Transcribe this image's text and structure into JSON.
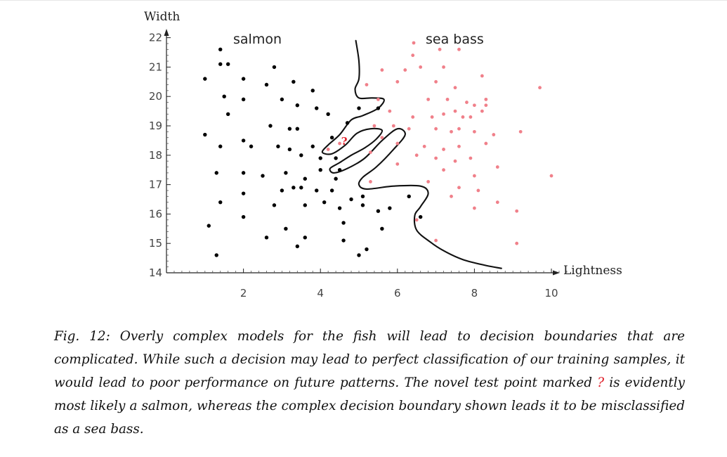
{
  "chart_data": {
    "type": "scatter",
    "ylabel": "Width",
    "xlabel": "Lightness",
    "xlim": [
      0,
      10.6
    ],
    "ylim": [
      14,
      22
    ],
    "x_ticks": [
      2,
      4,
      6,
      8,
      10
    ],
    "y_ticks": [
      14,
      15,
      16,
      17,
      18,
      19,
      20,
      21,
      22
    ],
    "series": [
      {
        "name": "salmon",
        "color": "#000000",
        "points": [
          [
            1.4,
            21.6
          ],
          [
            1.4,
            21.1
          ],
          [
            1.6,
            21.1
          ],
          [
            2.0,
            20.6
          ],
          [
            2.8,
            21.0
          ],
          [
            1.0,
            20.6
          ],
          [
            1.5,
            20.0
          ],
          [
            2.0,
            19.9
          ],
          [
            2.6,
            20.4
          ],
          [
            3.3,
            20.5
          ],
          [
            3.8,
            20.2
          ],
          [
            3.0,
            19.9
          ],
          [
            3.4,
            19.7
          ],
          [
            1.6,
            19.4
          ],
          [
            3.9,
            19.6
          ],
          [
            4.2,
            19.4
          ],
          [
            5.0,
            19.6
          ],
          [
            2.7,
            19.0
          ],
          [
            3.2,
            18.9
          ],
          [
            3.4,
            18.9
          ],
          [
            4.7,
            19.1
          ],
          [
            5.5,
            19.6
          ],
          [
            1.0,
            18.7
          ],
          [
            1.4,
            18.3
          ],
          [
            2.0,
            18.5
          ],
          [
            2.2,
            18.3
          ],
          [
            2.9,
            18.3
          ],
          [
            3.2,
            18.2
          ],
          [
            3.8,
            18.3
          ],
          [
            4.3,
            18.6
          ],
          [
            3.5,
            18.0
          ],
          [
            4.0,
            17.9
          ],
          [
            4.4,
            17.9
          ],
          [
            1.3,
            17.4
          ],
          [
            2.0,
            17.4
          ],
          [
            2.5,
            17.3
          ],
          [
            3.1,
            17.4
          ],
          [
            3.6,
            17.2
          ],
          [
            4.4,
            17.2
          ],
          [
            4.5,
            17.5
          ],
          [
            4.0,
            17.5
          ],
          [
            3.3,
            16.9
          ],
          [
            3.5,
            16.9
          ],
          [
            3.9,
            16.8
          ],
          [
            4.3,
            16.8
          ],
          [
            3.0,
            16.8
          ],
          [
            2.0,
            16.7
          ],
          [
            1.4,
            16.4
          ],
          [
            2.8,
            16.3
          ],
          [
            3.6,
            16.3
          ],
          [
            4.1,
            16.4
          ],
          [
            4.5,
            16.2
          ],
          [
            4.8,
            16.5
          ],
          [
            5.1,
            16.3
          ],
          [
            5.1,
            16.6
          ],
          [
            6.3,
            16.6
          ],
          [
            5.8,
            16.2
          ],
          [
            5.5,
            16.1
          ],
          [
            2.0,
            15.9
          ],
          [
            1.1,
            15.6
          ],
          [
            3.1,
            15.5
          ],
          [
            4.6,
            15.7
          ],
          [
            5.6,
            15.5
          ],
          [
            2.6,
            15.2
          ],
          [
            3.6,
            15.2
          ],
          [
            4.6,
            15.1
          ],
          [
            3.4,
            14.9
          ],
          [
            5.2,
            14.8
          ],
          [
            1.3,
            14.6
          ],
          [
            5.0,
            14.6
          ],
          [
            6.6,
            15.9
          ]
        ]
      },
      {
        "name": "sea bass",
        "color": "#f0808a",
        "points": [
          [
            6.4,
            21.4
          ],
          [
            7.1,
            21.6
          ],
          [
            7.6,
            21.6
          ],
          [
            5.6,
            20.9
          ],
          [
            6.2,
            20.9
          ],
          [
            6.6,
            21.0
          ],
          [
            7.2,
            21.0
          ],
          [
            8.2,
            20.7
          ],
          [
            5.2,
            20.4
          ],
          [
            6.0,
            20.5
          ],
          [
            7.0,
            20.5
          ],
          [
            7.5,
            20.3
          ],
          [
            9.7,
            20.3
          ],
          [
            5.5,
            19.9
          ],
          [
            6.8,
            19.9
          ],
          [
            7.3,
            19.9
          ],
          [
            7.8,
            19.8
          ],
          [
            8.0,
            19.7
          ],
          [
            8.3,
            19.9
          ],
          [
            5.8,
            19.5
          ],
          [
            6.4,
            19.3
          ],
          [
            6.9,
            19.3
          ],
          [
            7.2,
            19.4
          ],
          [
            7.5,
            19.5
          ],
          [
            7.7,
            19.3
          ],
          [
            7.9,
            19.3
          ],
          [
            8.2,
            19.5
          ],
          [
            8.3,
            19.7
          ],
          [
            5.4,
            19.0
          ],
          [
            5.9,
            19.0
          ],
          [
            6.3,
            18.9
          ],
          [
            7.0,
            18.9
          ],
          [
            7.4,
            18.8
          ],
          [
            7.6,
            18.9
          ],
          [
            8.0,
            18.8
          ],
          [
            8.5,
            18.7
          ],
          [
            9.2,
            18.8
          ],
          [
            5.6,
            18.6
          ],
          [
            6.0,
            18.4
          ],
          [
            6.7,
            18.3
          ],
          [
            7.2,
            18.2
          ],
          [
            7.6,
            18.3
          ],
          [
            8.3,
            18.4
          ],
          [
            5.3,
            18.1
          ],
          [
            6.5,
            18.0
          ],
          [
            7.0,
            17.9
          ],
          [
            7.5,
            17.8
          ],
          [
            7.9,
            17.9
          ],
          [
            4.2,
            18.2
          ],
          [
            6.0,
            17.7
          ],
          [
            7.2,
            17.5
          ],
          [
            8.0,
            17.3
          ],
          [
            8.6,
            17.6
          ],
          [
            10.0,
            17.3
          ],
          [
            5.3,
            17.1
          ],
          [
            6.8,
            17.1
          ],
          [
            7.6,
            16.9
          ],
          [
            8.1,
            16.8
          ],
          [
            7.4,
            16.6
          ],
          [
            8.6,
            16.4
          ],
          [
            8.0,
            16.2
          ],
          [
            9.1,
            16.1
          ],
          [
            6.5,
            15.8
          ],
          [
            7.0,
            15.1
          ],
          [
            9.1,
            15.0
          ],
          [
            4.5,
            18.4
          ]
        ]
      }
    ],
    "annotations": [
      {
        "text": "?",
        "x": 4.62,
        "y": 18.5,
        "color": "#e0222c"
      }
    ],
    "boundary": [
      [
        4.92,
        21.9
      ],
      [
        5.0,
        21.2
      ],
      [
        5.0,
        20.6
      ],
      [
        4.9,
        20.25
      ],
      [
        5.0,
        19.95
      ],
      [
        5.35,
        19.95
      ],
      [
        5.65,
        19.9
      ],
      [
        5.5,
        19.6
      ],
      [
        5.1,
        19.35
      ],
      [
        4.8,
        19.2
      ],
      [
        4.5,
        18.7
      ],
      [
        4.2,
        18.35
      ],
      [
        4.05,
        18.1
      ],
      [
        4.3,
        18.05
      ],
      [
        4.65,
        18.35
      ],
      [
        4.95,
        18.75
      ],
      [
        5.3,
        18.9
      ],
      [
        5.6,
        18.85
      ],
      [
        5.45,
        18.55
      ],
      [
        5.15,
        18.25
      ],
      [
        4.8,
        18.0
      ],
      [
        4.5,
        17.75
      ],
      [
        4.25,
        17.55
      ],
      [
        4.35,
        17.4
      ],
      [
        4.7,
        17.55
      ],
      [
        5.15,
        17.9
      ],
      [
        5.6,
        18.5
      ],
      [
        6.0,
        18.9
      ],
      [
        6.2,
        18.7
      ],
      [
        5.9,
        18.2
      ],
      [
        5.45,
        17.6
      ],
      [
        5.1,
        17.25
      ],
      [
        5.0,
        17.0
      ],
      [
        5.2,
        16.85
      ],
      [
        5.9,
        16.95
      ],
      [
        6.6,
        16.95
      ],
      [
        6.8,
        16.7
      ],
      [
        6.6,
        16.25
      ],
      [
        6.45,
        15.95
      ],
      [
        6.5,
        15.45
      ],
      [
        6.85,
        15.05
      ],
      [
        7.2,
        14.75
      ],
      [
        7.7,
        14.45
      ],
      [
        8.3,
        14.25
      ],
      [
        8.7,
        14.15
      ]
    ]
  },
  "figure": {
    "ylabel_text": "Width",
    "xlabel_text": "Lightness",
    "salmon_label": "salmon",
    "seabass_label": "sea bass"
  },
  "caption": {
    "part1": "Fig. 12: Overly complex models for the fish will lead to decision boundaries that are complicated. While such a decision may lead to perfect classification of our training samples, it would lead to poor performance on future patterns. The novel test point marked ",
    "marker": "?",
    "part2": " is evidently most likely a salmon, whereas the complex decision boundary shown leads it to be misclassified as a sea bass."
  }
}
